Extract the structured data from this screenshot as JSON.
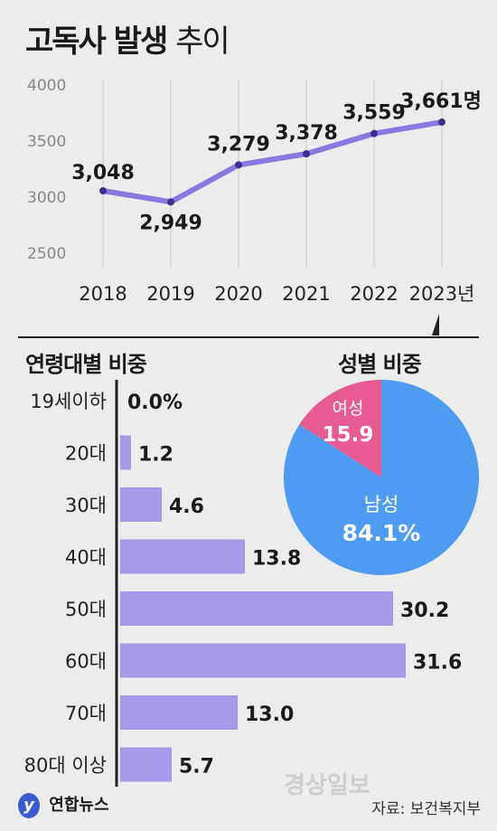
{
  "header": {
    "title_main": "고독사 발생",
    "title_sub": "추이"
  },
  "colors": {
    "line": "#8a78e0",
    "bar": "#a898e8",
    "male": "#4d9cf2",
    "female": "#e85a92"
  },
  "chart_data": [
    {
      "type": "line",
      "title": "고독사 발생 추이",
      "categories": [
        "2018",
        "2019",
        "2020",
        "2021",
        "2022",
        "2023년"
      ],
      "values": [
        3048,
        2949,
        3279,
        3378,
        3559,
        3661
      ],
      "value_labels": [
        "3,048",
        "2,949",
        "3,279",
        "3,378",
        "3,559",
        "3,661명"
      ],
      "yticks": [
        "4000",
        "3500",
        "3000",
        "2500"
      ],
      "ylim": [
        2500,
        4000
      ],
      "grid": "vertical"
    },
    {
      "type": "bar",
      "title": "연령대별 비중",
      "categories": [
        "19세이하",
        "20대",
        "30대",
        "40대",
        "50대",
        "60대",
        "70대",
        "80대 이상"
      ],
      "values": [
        0.0,
        1.2,
        4.6,
        13.8,
        30.2,
        31.6,
        13.0,
        5.7
      ],
      "value_labels": [
        "0.0%",
        "1.2",
        "4.6",
        "13.8",
        "30.2",
        "31.6",
        "13.0",
        "5.7"
      ]
    },
    {
      "type": "pie",
      "title": "성별 비중",
      "slices": [
        {
          "label": "남성",
          "value": 84.1,
          "value_label": "84.1%"
        },
        {
          "label": "여성",
          "value": 15.9,
          "value_label": "15.9"
        }
      ]
    }
  ],
  "footer": {
    "logo_text": "연합뉴스",
    "logo_mark": "y",
    "source": "자료: 보건복지부",
    "watermark": "경상일보"
  }
}
